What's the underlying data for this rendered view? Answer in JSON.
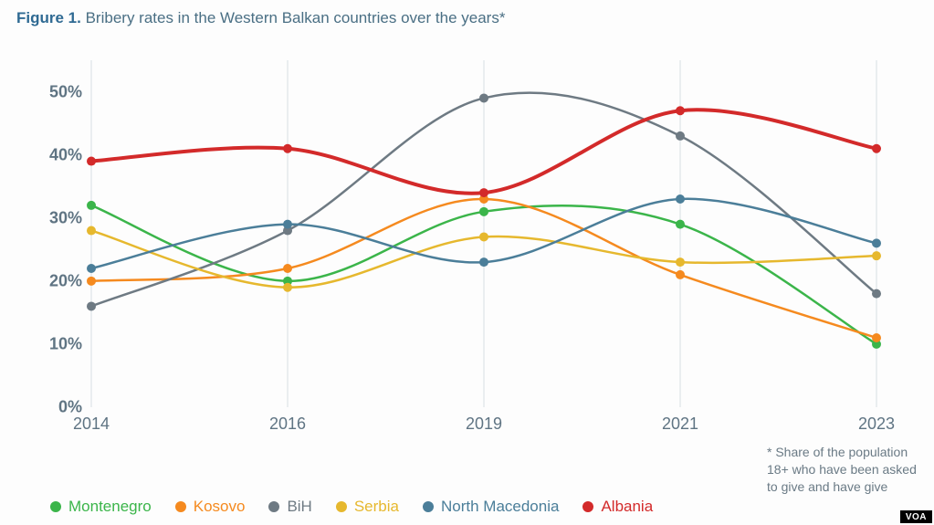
{
  "title_prefix": "Figure 1.",
  "title_rest": "Bribery rates in the Western Balkan countries over the years*",
  "footnote": "* Share of the population 18+ who have been asked to give and have give",
  "voa": "VOA",
  "chart": {
    "type": "line",
    "background_color": "#fdfdfd",
    "grid_color": "#d8dfe4",
    "axis_label_color": "#5f7483",
    "categories": [
      "2014",
      "2016",
      "2019",
      "2021",
      "2023"
    ],
    "x_positions": [
      0,
      0.25,
      0.5,
      0.75,
      1.0
    ],
    "ylim": [
      0,
      55
    ],
    "yticks": [
      0,
      10,
      20,
      30,
      40,
      50
    ],
    "ytick_labels": [
      "0%",
      "10%",
      "20%",
      "30%",
      "40%",
      "50%"
    ],
    "line_width_default": 2.5,
    "line_width_emphasis": 4,
    "marker_radius": 5,
    "series": [
      {
        "name": "Montenegro",
        "color": "#3bb54a",
        "values": [
          32,
          20,
          31,
          29,
          10
        ],
        "width": 2.5
      },
      {
        "name": "Kosovo",
        "color": "#f58a1f",
        "values": [
          20,
          22,
          33,
          21,
          11
        ],
        "width": 2.5
      },
      {
        "name": "BiH",
        "color": "#6e7a83",
        "values": [
          16,
          28,
          49,
          43,
          18
        ],
        "width": 2.5
      },
      {
        "name": "Serbia",
        "color": "#e6b82e",
        "values": [
          28,
          19,
          27,
          23,
          24
        ],
        "width": 2.5
      },
      {
        "name": "North Macedonia",
        "color": "#4b7e99",
        "values": [
          22,
          29,
          23,
          33,
          26
        ],
        "width": 2.5
      },
      {
        "name": "Albania",
        "color": "#d32a2a",
        "values": [
          39,
          41,
          34,
          47,
          41
        ],
        "width": 4
      }
    ]
  }
}
